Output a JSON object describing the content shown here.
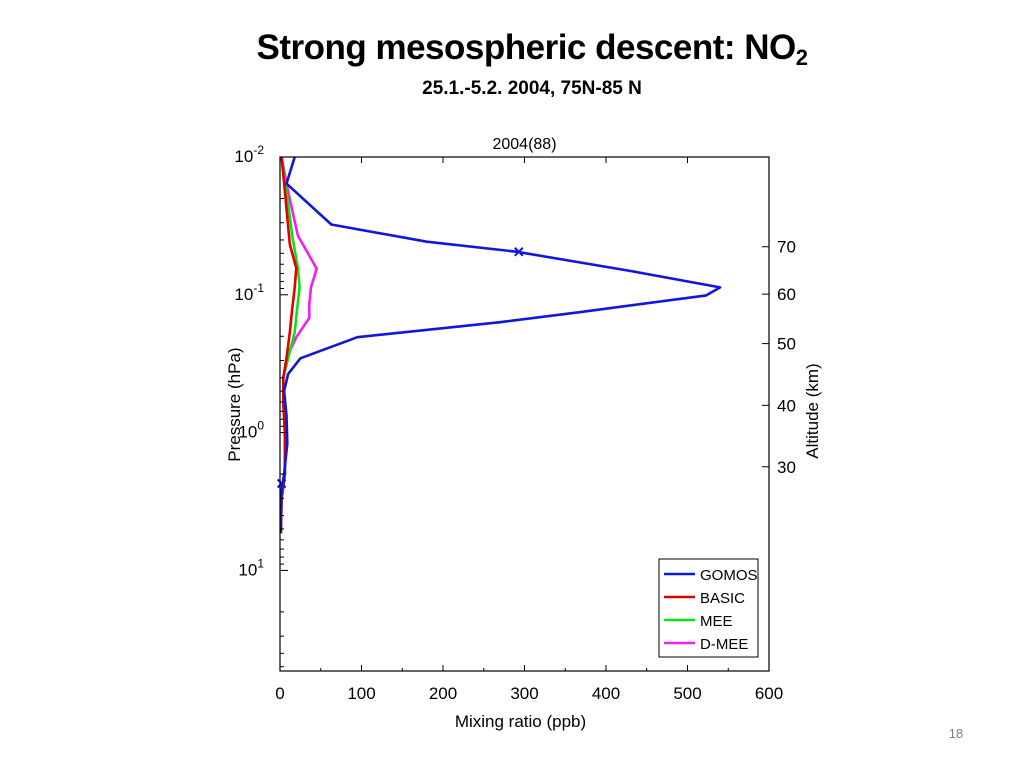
{
  "slide": {
    "title": "Strong mesospheric descent: NO",
    "title_subscript": "2",
    "subtitle": "25.1.-5.2. 2004,  75N-85 N",
    "page_number": "18"
  },
  "chart_data": {
    "type": "line",
    "title": "2004(88)",
    "xlabel": "Mixing ratio (ppb)",
    "ylabel": "Pressure (hPa)",
    "y2label": "Altitude (km)",
    "xlim": [
      0,
      600
    ],
    "ylim_log10": [
      -2,
      1.73
    ],
    "y_scale": "log",
    "y_reversed": true,
    "x_ticks": [
      0,
      100,
      200,
      300,
      400,
      500,
      600
    ],
    "y_ticks": [
      {
        "value": 0.01,
        "base": "10",
        "exp": "-2"
      },
      {
        "value": 0.1,
        "base": "10",
        "exp": "-1"
      },
      {
        "value": 1,
        "base": "10",
        "exp": "0"
      },
      {
        "value": 10,
        "base": "10",
        "exp": "1"
      }
    ],
    "y2_ticks": [
      {
        "pressure": 0.0448,
        "label": "70"
      },
      {
        "pressure": 0.0989,
        "label": "60"
      },
      {
        "pressure": 0.226,
        "label": "50"
      },
      {
        "pressure": 0.634,
        "label": "40"
      },
      {
        "pressure": 1.77,
        "label": "30"
      }
    ],
    "legend_position": "bottom-right",
    "series": [
      {
        "name": "GOMOS",
        "color": "#0f18d8",
        "points": [
          [
            18,
            0.01
          ],
          [
            8,
            0.0156
          ],
          [
            63,
            0.0309
          ],
          [
            180,
            0.0412
          ],
          [
            290,
            0.0487
          ],
          [
            433,
            0.0676
          ],
          [
            540,
            0.0884
          ],
          [
            523,
            0.101
          ],
          [
            370,
            0.133
          ],
          [
            270,
            0.158
          ],
          [
            95,
            0.203
          ],
          [
            25,
            0.289
          ],
          [
            10,
            0.376
          ],
          [
            5,
            0.5
          ],
          [
            8,
            0.75
          ],
          [
            9,
            1.2
          ],
          [
            5,
            2.0
          ],
          [
            2,
            2.6
          ],
          [
            1,
            4.0
          ],
          [
            1,
            5.37
          ]
        ],
        "markers": [
          [
            293,
            0.0487
          ],
          [
            2,
            2.34
          ]
        ]
      },
      {
        "name": "BASIC",
        "color": "#e00000",
        "points": [
          [
            2,
            0.01
          ],
          [
            6,
            0.0178
          ],
          [
            12,
            0.0429
          ],
          [
            20,
            0.064
          ],
          [
            18,
            0.0884
          ],
          [
            15,
            0.127
          ],
          [
            12,
            0.187
          ],
          [
            8,
            0.289
          ],
          [
            4,
            0.4
          ],
          [
            4,
            0.6
          ],
          [
            6,
            1.0
          ],
          [
            6,
            2.0
          ],
          [
            2,
            3.0
          ],
          [
            1,
            5.37
          ]
        ]
      },
      {
        "name": "MEE",
        "color": "#10e010",
        "points": [
          [
            2,
            0.01
          ],
          [
            8,
            0.0178
          ],
          [
            15,
            0.0372
          ],
          [
            22,
            0.064
          ],
          [
            24,
            0.0884
          ],
          [
            21,
            0.127
          ],
          [
            18,
            0.187
          ],
          [
            10,
            0.289
          ],
          [
            4,
            0.4
          ],
          [
            4,
            0.6
          ],
          [
            6,
            1.0
          ],
          [
            6,
            2.0
          ],
          [
            2,
            3.0
          ],
          [
            1,
            5.37
          ]
        ]
      },
      {
        "name": "D-MEE",
        "color": "#f020f0",
        "points": [
          [
            2,
            0.01
          ],
          [
            10,
            0.0178
          ],
          [
            22,
            0.0372
          ],
          [
            45,
            0.0646
          ],
          [
            38,
            0.0884
          ],
          [
            36,
            0.118
          ],
          [
            36,
            0.147
          ],
          [
            20,
            0.203
          ],
          [
            8,
            0.289
          ],
          [
            4,
            0.4
          ],
          [
            4,
            0.6
          ],
          [
            6,
            1.0
          ],
          [
            6,
            2.0
          ],
          [
            2,
            3.0
          ],
          [
            1,
            5.37
          ]
        ]
      }
    ]
  }
}
